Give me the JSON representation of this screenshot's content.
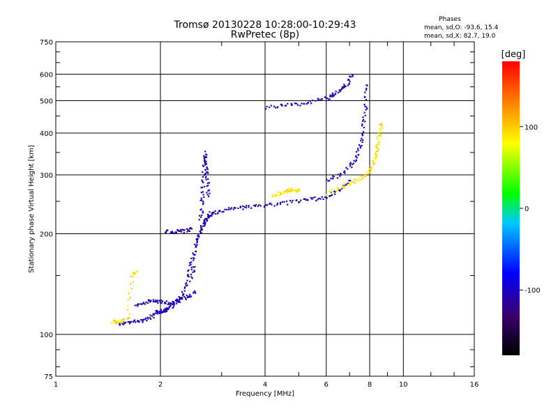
{
  "chart_data": {
    "type": "scatter",
    "title": "Tromsø 20130228 10:28:00-10:29:43",
    "subtitle": "RwPretec (8p)",
    "xlabel": "Frequency [MHz]",
    "ylabel": "Stationary phase Virtual Height [km]",
    "x_scale": "log",
    "y_scale": "log",
    "xlim": [
      1,
      16
    ],
    "ylim": [
      75,
      750
    ],
    "grid": true,
    "x_ticks": [
      1,
      2,
      4,
      6,
      8,
      10,
      16
    ],
    "y_ticks": [
      75,
      100,
      200,
      300,
      400,
      500,
      600,
      750
    ],
    "annotation": {
      "title": "Phases",
      "line1": "mean, sd,O: -93.6, 15.4",
      "line2": "mean, sd,X:  82.7, 19.0"
    },
    "colorbar": {
      "label": "[deg]",
      "ticks": [
        100,
        0,
        -100
      ],
      "range": [
        -180,
        180
      ],
      "colors": [
        "#000000",
        "#3a0070",
        "#0000ff",
        "#00c8ff",
        "#00ff00",
        "#ffff00",
        "#ff8000",
        "#ff0000"
      ]
    },
    "traces": [
      {
        "name": "",
        "phase": -100,
        "x": [
          1.52,
          1.6,
          1.7,
          1.8,
          1.9,
          1.95,
          2.0,
          2.05,
          2.1,
          2.2,
          2.3,
          2.4,
          2.5
        ],
        "y": [
          108,
          109,
          110,
          111,
          114,
          117,
          118,
          118,
          120,
          125,
          132,
          145,
          160
        ]
      },
      {
        "name": "",
        "phase": -100,
        "x": [
          1.7,
          1.8,
          1.9,
          2.0,
          2.1,
          2.2,
          2.3,
          2.4,
          2.5
        ],
        "y": [
          122,
          125,
          127,
          126,
          124,
          126,
          128,
          131,
          135
        ]
      },
      {
        "name": "",
        "phase": -100,
        "x": [
          2.4,
          2.45,
          2.5,
          2.55,
          2.6,
          2.65,
          2.7,
          2.75,
          2.8
        ],
        "y": [
          150,
          165,
          180,
          195,
          205,
          215,
          222,
          228,
          232
        ]
      },
      {
        "name": "",
        "phase": -100,
        "x": [
          2.6,
          2.62,
          2.64,
          2.66,
          2.68,
          2.7,
          2.72,
          2.74
        ],
        "y": [
          220,
          250,
          280,
          320,
          350,
          320,
          290,
          260
        ]
      },
      {
        "name": "",
        "phase": -110,
        "x": [
          2.05,
          2.15,
          2.25,
          2.35,
          2.45
        ],
        "y": [
          205,
          203,
          204,
          205,
          208
        ]
      },
      {
        "name": "",
        "phase": -100,
        "x": [
          2.8,
          3.0,
          3.3,
          3.6,
          4.0,
          4.5,
          5.0,
          5.5,
          6.0,
          6.5,
          7.0
        ],
        "y": [
          230,
          236,
          240,
          242,
          245,
          248,
          252,
          255,
          260,
          270,
          290
        ]
      },
      {
        "name": "",
        "phase": -100,
        "x": [
          6.0,
          6.5,
          7.0,
          7.3,
          7.5,
          7.65,
          7.75,
          7.8
        ],
        "y": [
          290,
          300,
          320,
          340,
          370,
          420,
          480,
          560
        ]
      },
      {
        "name": "",
        "phase": -100,
        "x": [
          4.0,
          4.5,
          5.0,
          5.5,
          6.0,
          6.3,
          6.6,
          6.9,
          7.1
        ],
        "y": [
          480,
          485,
          490,
          500,
          510,
          525,
          545,
          570,
          600
        ]
      },
      {
        "name": "",
        "phase": 90,
        "x": [
          6.0,
          6.5,
          7.0,
          7.5,
          7.9,
          8.1,
          8.3,
          8.4,
          8.5,
          8.6
        ],
        "y": [
          265,
          275,
          285,
          295,
          305,
          320,
          345,
          370,
          400,
          430
        ]
      },
      {
        "name": "",
        "phase": 90,
        "x": [
          4.2,
          4.4,
          4.6,
          4.8,
          5.0
        ],
        "y": [
          262,
          266,
          270,
          272,
          270
        ]
      },
      {
        "name": "",
        "phase": 90,
        "x": [
          1.45,
          1.5,
          1.6,
          1.65,
          1.7
        ],
        "y": [
          110,
          109,
          112,
          150,
          155
        ]
      }
    ]
  }
}
